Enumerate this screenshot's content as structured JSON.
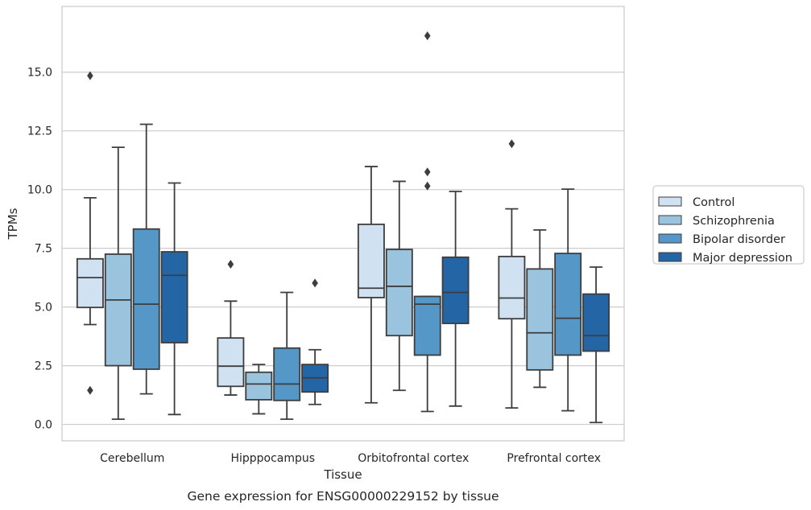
{
  "chart_data": {
    "type": "box",
    "title": "",
    "caption": "Gene expression for ENSG00000229152 by tissue",
    "xlabel": "Tissue",
    "ylabel": "TPMs",
    "ylim": [
      -0.7,
      17.8
    ],
    "yticks": [
      "0.0",
      "2.5",
      "5.0",
      "7.5",
      "10.0",
      "12.5",
      "15.0"
    ],
    "yticks_values": [
      0,
      2.5,
      5,
      7.5,
      10,
      12.5,
      15
    ],
    "grid": "horizontal",
    "legend_position": "right",
    "categories": [
      "Cerebellum",
      "Hipppocampus",
      "Orbitofrontal cortex",
      "Prefrontal cortex"
    ],
    "series": [
      {
        "name": "Control",
        "color": "#d0e2f2",
        "boxes": [
          {
            "whisker_low": 4.25,
            "q1": 4.98,
            "median": 6.25,
            "q3": 7.05,
            "whisker_high": 9.65,
            "outliers": [
              14.85,
              1.45
            ]
          },
          {
            "whisker_low": 1.25,
            "q1": 1.62,
            "median": 2.48,
            "q3": 3.68,
            "whisker_high": 5.25,
            "outliers": [
              6.82
            ]
          },
          {
            "whisker_low": 0.92,
            "q1": 5.4,
            "median": 5.8,
            "q3": 8.52,
            "whisker_high": 10.98,
            "outliers": []
          },
          {
            "whisker_low": 0.7,
            "q1": 4.5,
            "median": 5.38,
            "q3": 7.15,
            "whisker_high": 9.18,
            "outliers": [
              11.95
            ]
          }
        ]
      },
      {
        "name": "Schizophrenia",
        "color": "#9ac3de",
        "boxes": [
          {
            "whisker_low": 0.22,
            "q1": 2.5,
            "median": 5.3,
            "q3": 7.25,
            "whisker_high": 11.8,
            "outliers": []
          },
          {
            "whisker_low": 0.45,
            "q1": 1.05,
            "median": 1.72,
            "q3": 2.22,
            "whisker_high": 2.55,
            "outliers": []
          },
          {
            "whisker_low": 1.45,
            "q1": 3.78,
            "median": 5.88,
            "q3": 7.45,
            "whisker_high": 10.35,
            "outliers": []
          },
          {
            "whisker_low": 1.58,
            "q1": 2.32,
            "median": 3.9,
            "q3": 6.62,
            "whisker_high": 8.28,
            "outliers": []
          }
        ]
      },
      {
        "name": "Bipolar disorder",
        "color": "#5597c6",
        "boxes": [
          {
            "whisker_low": 1.3,
            "q1": 2.35,
            "median": 5.12,
            "q3": 8.32,
            "whisker_high": 12.78,
            "outliers": []
          },
          {
            "whisker_low": 0.22,
            "q1": 1.02,
            "median": 1.72,
            "q3": 3.25,
            "whisker_high": 5.62,
            "outliers": []
          },
          {
            "whisker_low": 0.55,
            "q1": 2.95,
            "median": 5.12,
            "q3": 5.45,
            "whisker_high": 5.45,
            "outliers": [
              16.55,
              10.75,
              10.15
            ]
          },
          {
            "whisker_low": 0.58,
            "q1": 2.95,
            "median": 4.52,
            "q3": 7.28,
            "whisker_high": 10.02,
            "outliers": []
          }
        ]
      },
      {
        "name": "Major depression",
        "color": "#2465a6",
        "boxes": [
          {
            "whisker_low": 0.42,
            "q1": 3.48,
            "median": 6.35,
            "q3": 7.35,
            "whisker_high": 10.28,
            "outliers": []
          },
          {
            "whisker_low": 0.85,
            "q1": 1.38,
            "median": 1.98,
            "q3": 2.55,
            "whisker_high": 3.18,
            "outliers": [
              6.02
            ]
          },
          {
            "whisker_low": 0.78,
            "q1": 4.3,
            "median": 5.62,
            "q3": 7.12,
            "whisker_high": 9.92,
            "outliers": []
          },
          {
            "whisker_low": 0.08,
            "q1": 3.12,
            "median": 3.78,
            "q3": 5.55,
            "whisker_high": 6.7,
            "outliers": []
          }
        ]
      }
    ]
  }
}
